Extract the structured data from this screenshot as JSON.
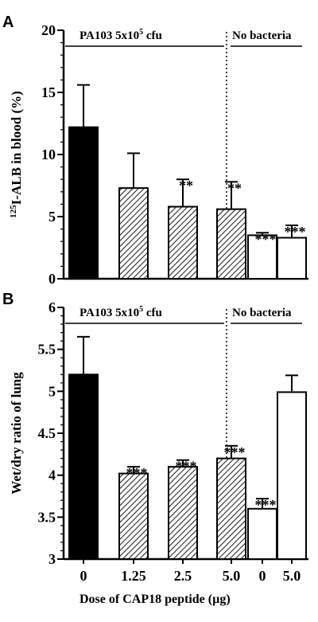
{
  "chart_data": [
    {
      "type": "bar",
      "panel": "A",
      "ylabel_sup": "125",
      "ylabel": "I-ALB in blood (%)",
      "ylim": [
        0,
        20
      ],
      "yticks": [
        "0",
        "5",
        "10",
        "15",
        "20"
      ],
      "categories": [
        "0",
        "1.25",
        "2.5",
        "5.0",
        "0",
        "5.0"
      ],
      "values": [
        12.2,
        7.3,
        5.8,
        5.6,
        3.5,
        3.3
      ],
      "errors": [
        3.4,
        2.8,
        2.2,
        2.2,
        0.2,
        1.0
      ],
      "fills": [
        "solid",
        "hatch",
        "hatch",
        "hatch",
        "open",
        "open"
      ],
      "significance": [
        "",
        "",
        "**",
        "**",
        "***",
        "***"
      ],
      "group_labels": [
        {
          "text": "PA103 5x10",
          "sup": "5",
          "suffix": " cfu"
        },
        {
          "text": "No bacteria",
          "sup": "",
          "suffix": ""
        }
      ]
    },
    {
      "type": "bar",
      "panel": "B",
      "ylabel": "Wet/dry ratio of lung",
      "ylim": [
        3,
        6
      ],
      "yticks": [
        "3",
        "3.5",
        "4",
        "4.5",
        "5",
        "5.5",
        "6"
      ],
      "categories": [
        "0",
        "1.25",
        "2.5",
        "5.0",
        "0",
        "5.0"
      ],
      "values": [
        5.2,
        4.02,
        4.1,
        4.2,
        3.6,
        4.99
      ],
      "errors": [
        0.45,
        0.08,
        0.08,
        0.15,
        0.12,
        0.2
      ],
      "fills": [
        "solid",
        "hatch",
        "hatch",
        "hatch",
        "open",
        "open"
      ],
      "significance": [
        "",
        "***",
        "***",
        "***",
        "***",
        ""
      ],
      "group_labels": [
        {
          "text": "PA103 5x10",
          "sup": "5",
          "suffix": " cfu"
        },
        {
          "text": "No bacteria",
          "sup": "",
          "suffix": ""
        }
      ]
    }
  ],
  "xlabel_prefix": "Dose of CAP18 peptide",
  "xlabel_unit": "(µg)"
}
